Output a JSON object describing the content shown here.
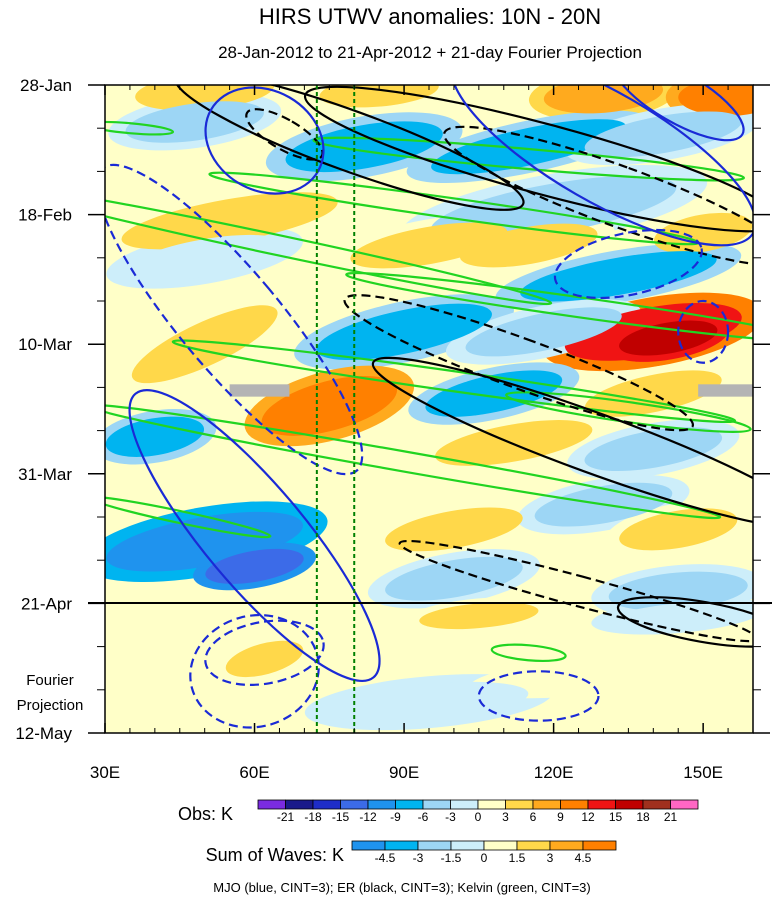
{
  "chart_data": {
    "type": "heatmap",
    "title": "HIRS UTWV anomalies: 10N - 20N",
    "subtitle": "28-Jan-2012 to 21-Apr-2012 + 21-day Fourier Projection",
    "xlabel": "",
    "ylabel": "",
    "x_ticks": [
      "30E",
      "60E",
      "90E",
      "120E",
      "150E"
    ],
    "x_tick_values": [
      30,
      60,
      90,
      120,
      150
    ],
    "xlim": [
      30,
      160
    ],
    "y_ticks": [
      "28-Jan",
      "18-Feb",
      "10-Mar",
      "31-Mar",
      "21-Apr",
      "12-May"
    ],
    "y_tick_days": [
      0,
      21,
      42,
      63,
      84,
      105
    ],
    "ylim_days": [
      0,
      105
    ],
    "projection_start": "21-Apr",
    "projection_label_line1": "Fourier",
    "projection_label_line2": "Projection",
    "reference_longitudes": [
      72.5,
      80
    ],
    "obs_colorbar": {
      "label": "Obs: K",
      "levels": [
        "-21",
        "-18",
        "-15",
        "-12",
        "-9",
        "-6",
        "-3",
        "0",
        "3",
        "6",
        "9",
        "12",
        "15",
        "18",
        "21"
      ],
      "colors": [
        "#7a2be0",
        "#1a1a8a",
        "#1e2dc8",
        "#3c6be8",
        "#1f93ee",
        "#00b4f0",
        "#9dd6f5",
        "#cdeefa",
        "#ffffc8",
        "#ffd84a",
        "#ffaa1e",
        "#ff8000",
        "#f01414",
        "#c00000",
        "#a0301e",
        "#ff66c4"
      ]
    },
    "waves_colorbar": {
      "label": "Sum of Waves: K",
      "levels": [
        "-4.5",
        "-3",
        "-1.5",
        "0",
        "1.5",
        "3",
        "4.5"
      ],
      "colors": [
        "#1f93ee",
        "#00b4f0",
        "#9dd6f5",
        "#cdeefa",
        "#ffffc8",
        "#ffd84a",
        "#ffaa1e",
        "#ff8000"
      ]
    },
    "footnote": "MJO (blue, CINT=3); ER (black, CINT=3); Kelvin (green, CINT=3)",
    "colors": {
      "mjo": "#1a2ad6",
      "er": "#000000",
      "kelvin": "#21d421",
      "ref_line": "#008000",
      "missing": "#b4b4b4"
    },
    "anomaly_blobs": [
      {
        "lon": 50,
        "day": 1,
        "rx": 14,
        "ry": 3,
        "rot": -5,
        "val": 6
      },
      {
        "lon": 85,
        "day": 1,
        "rx": 12,
        "ry": 2.5,
        "rot": -5,
        "val": 6
      },
      {
        "lon": 130,
        "day": 1.5,
        "rx": 12,
        "ry": 3,
        "rot": -5,
        "val": 9
      },
      {
        "lon": 155,
        "day": 2,
        "rx": 10,
        "ry": 3,
        "rot": 0,
        "val": 12
      },
      {
        "lon": 82,
        "day": 10,
        "rx": 16,
        "ry": 3.5,
        "rot": -10,
        "val": -9
      },
      {
        "lon": 48,
        "day": 6,
        "rx": 14,
        "ry": 3,
        "rot": -8,
        "val": -6
      },
      {
        "lon": 115,
        "day": 10,
        "rx": 20,
        "ry": 3,
        "rot": -12,
        "val": -9
      },
      {
        "lon": 142,
        "day": 8,
        "rx": 16,
        "ry": 3,
        "rot": -10,
        "val": -6
      },
      {
        "lon": 120,
        "day": 20,
        "rx": 25,
        "ry": 4,
        "rot": -10,
        "val": -6
      },
      {
        "lon": 55,
        "day": 22,
        "rx": 22,
        "ry": 3.5,
        "rot": -10,
        "val": 6
      },
      {
        "lon": 95,
        "day": 26,
        "rx": 16,
        "ry": 3,
        "rot": -10,
        "val": 6
      },
      {
        "lon": 115,
        "day": 26,
        "rx": 14,
        "ry": 3,
        "rot": -10,
        "val": 6
      },
      {
        "lon": 150,
        "day": 24,
        "rx": 10,
        "ry": 3,
        "rot": -10,
        "val": 6
      },
      {
        "lon": 50,
        "day": 28,
        "rx": 16,
        "ry": 3,
        "rot": -10,
        "val": -3
      },
      {
        "lon": 133,
        "day": 31,
        "rx": 20,
        "ry": 3,
        "rot": -10,
        "val": -9
      },
      {
        "lon": 140,
        "day": 40,
        "rx": 18,
        "ry": 4,
        "rot": -10,
        "val": 15
      },
      {
        "lon": 143,
        "day": 41,
        "rx": 10,
        "ry": 2.5,
        "rot": -10,
        "val": 18
      },
      {
        "lon": 90,
        "day": 40,
        "rx": 18,
        "ry": 3.5,
        "rot": -12,
        "val": -9
      },
      {
        "lon": 118,
        "day": 40,
        "rx": 16,
        "ry": 3,
        "rot": -12,
        "val": -6
      },
      {
        "lon": 50,
        "day": 42,
        "rx": 16,
        "ry": 3.5,
        "rot": -25,
        "val": 6
      },
      {
        "lon": 75,
        "day": 52,
        "rx": 14,
        "ry": 4,
        "rot": -15,
        "val": 12
      },
      {
        "lon": 108,
        "day": 50,
        "rx": 14,
        "ry": 3,
        "rot": -12,
        "val": -9
      },
      {
        "lon": 140,
        "day": 50,
        "rx": 14,
        "ry": 3,
        "rot": -12,
        "val": 6
      },
      {
        "lon": 40,
        "day": 57,
        "rx": 10,
        "ry": 3,
        "rot": -10,
        "val": -9
      },
      {
        "lon": 112,
        "day": 58,
        "rx": 16,
        "ry": 3,
        "rot": -10,
        "val": 6
      },
      {
        "lon": 140,
        "day": 59,
        "rx": 14,
        "ry": 3,
        "rot": -10,
        "val": -6
      },
      {
        "lon": 50,
        "day": 74,
        "rx": 20,
        "ry": 4,
        "rot": -10,
        "val": -12
      },
      {
        "lon": 60,
        "day": 78,
        "rx": 10,
        "ry": 2.5,
        "rot": -10,
        "val": -15
      },
      {
        "lon": 100,
        "day": 72,
        "rx": 14,
        "ry": 3,
        "rot": -10,
        "val": 6
      },
      {
        "lon": 130,
        "day": 68,
        "rx": 14,
        "ry": 3,
        "rot": -10,
        "val": -6
      },
      {
        "lon": 145,
        "day": 72,
        "rx": 12,
        "ry": 3,
        "rot": -10,
        "val": 6
      },
      {
        "lon": 100,
        "day": 80,
        "rx": 14,
        "ry": 3,
        "rot": -10,
        "val": -6
      },
      {
        "lon": 145,
        "day": 82,
        "rx": 14,
        "ry": 3,
        "rot": -5,
        "val": -6
      },
      {
        "lon": 105,
        "day": 86,
        "rx": 12,
        "ry": 2,
        "rot": -5,
        "val": 4.5
      },
      {
        "lon": 145,
        "day": 86,
        "rx": 14,
        "ry": 2,
        "rot": -5,
        "val": -3
      },
      {
        "lon": 60,
        "day": 93,
        "rx": 16,
        "ry": 5,
        "rot": -15,
        "val": 3
      },
      {
        "lon": 62,
        "day": 93,
        "rx": 8,
        "ry": 2.5,
        "rot": -15,
        "val": 4.5
      },
      {
        "lon": 125,
        "day": 96,
        "rx": 22,
        "ry": 3,
        "rot": -5,
        "val": 1.5
      },
      {
        "lon": 95,
        "day": 100,
        "rx": 20,
        "ry": 3,
        "rot": -5,
        "val": -1.5
      }
    ],
    "mjo_contours": [
      {
        "lon": 62,
        "day": 9,
        "rx": 10,
        "ry": 10,
        "rot": -60,
        "dash": false
      },
      {
        "lon": 130,
        "day": 10,
        "rx": 11,
        "ry": 28,
        "rot": -60,
        "dash": false
      },
      {
        "lon": 60,
        "day": 73,
        "rx": 10,
        "ry": 30,
        "rot": -40,
        "dash": false
      },
      {
        "lon": 145,
        "day": 2,
        "rx": 5,
        "ry": 12,
        "rot": -60,
        "dash": false
      },
      {
        "lon": 55,
        "day": 38,
        "rx": 10,
        "ry": 32,
        "rot": -40,
        "dash": true
      },
      {
        "lon": 62,
        "day": 92,
        "rx": 12,
        "ry": 5,
        "rot": -10,
        "dash": true
      },
      {
        "lon": 60,
        "day": 95,
        "rx": 13,
        "ry": 9,
        "rot": -15,
        "dash": true
      },
      {
        "lon": 117,
        "day": 99,
        "rx": 12,
        "ry": 4,
        "rot": 0,
        "dash": true
      },
      {
        "lon": 150,
        "day": 40,
        "rx": 5,
        "ry": 5,
        "rot": 0,
        "dash": true
      },
      {
        "lon": 135,
        "day": 29,
        "rx": 15,
        "ry": 5,
        "rot": -12,
        "dash": true
      }
    ],
    "er_contours": [
      {
        "lon": 118,
        "day": 12,
        "rx": 7,
        "ry": 40,
        "rot": -75,
        "dash": false
      },
      {
        "lon": 79,
        "day": 9,
        "rx": 6,
        "ry": 30,
        "rot": -70,
        "dash": false
      },
      {
        "lon": 128,
        "day": 58,
        "rx": 6,
        "ry": 38,
        "rot": -70,
        "dash": false
      },
      {
        "lon": 150,
        "day": 87,
        "rx": 4,
        "ry": 14,
        "rot": -80,
        "dash": false
      },
      {
        "lon": 113,
        "day": 45,
        "rx": 5,
        "ry": 30,
        "rot": -70,
        "dash": true
      },
      {
        "lon": 133,
        "day": 18,
        "rx": 6,
        "ry": 30,
        "rot": -70,
        "dash": true
      },
      {
        "lon": 66,
        "day": 8,
        "rx": 3,
        "ry": 7,
        "rot": -60,
        "dash": true
      },
      {
        "lon": 125,
        "day": 82,
        "rx": 3,
        "ry": 30,
        "rot": -75,
        "dash": true
      }
    ],
    "kelvin_contours": [
      {
        "lon": 65,
        "day": 26,
        "rx": 2,
        "ry": 45,
        "rot": -78,
        "dash": false
      },
      {
        "lon": 100,
        "day": 20,
        "rx": 2,
        "ry": 40,
        "rot": -82,
        "dash": false
      },
      {
        "lon": 115,
        "day": 12,
        "rx": 2,
        "ry": 35,
        "rot": -85,
        "dash": false
      },
      {
        "lon": 125,
        "day": 36,
        "rx": 2,
        "ry": 38,
        "rot": -82,
        "dash": false
      },
      {
        "lon": 100,
        "day": 48,
        "rx": 2,
        "ry": 46,
        "rot": -82,
        "dash": false
      },
      {
        "lon": 90,
        "day": 61,
        "rx": 2,
        "ry": 52,
        "rot": -80,
        "dash": false
      },
      {
        "lon": 45,
        "day": 70,
        "rx": 1.2,
        "ry": 15,
        "rot": -78,
        "dash": false
      },
      {
        "lon": 35,
        "day": 7,
        "rx": 1,
        "ry": 7,
        "rot": -85,
        "dash": false
      },
      {
        "lon": 115,
        "day": 92,
        "rx": 1.5,
        "ry": 6,
        "rot": -85,
        "dash": false
      },
      {
        "lon": 135,
        "day": 53,
        "rx": 2,
        "ry": 20,
        "rot": -82,
        "dash": false
      }
    ],
    "missing_patches": [
      {
        "lon0": 55,
        "lon1": 67,
        "day0": 48.5,
        "day1": 50.5
      },
      {
        "lon0": 149,
        "lon1": 160,
        "day0": 48.5,
        "day1": 50.5
      }
    ]
  }
}
